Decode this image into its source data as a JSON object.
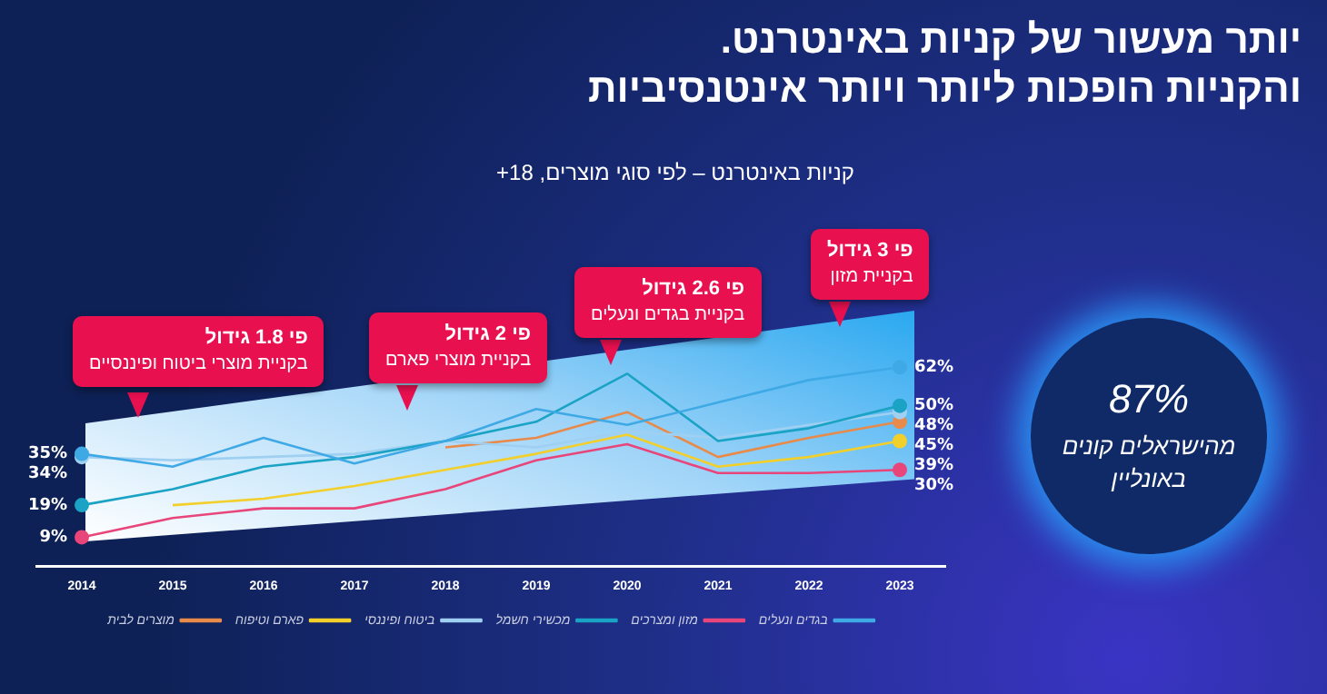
{
  "chart_data": {
    "type": "line",
    "title": "יותר מעשור של קניות באינטרנט.\nוהקניות הופכות ליותר ויותר אינטנסיביות",
    "subtitle": "קניות באינטרנט – לפי סוגי מוצרים, 18+",
    "categories": [
      "2014",
      "2015",
      "2016",
      "2017",
      "2018",
      "2019",
      "2020",
      "2021",
      "2022",
      "2023"
    ],
    "tick_labels": "x",
    "legend": "bottom",
    "line_style": "solid",
    "series": [
      {
        "name": "בגדים ונעלים",
        "color": "#3fa9e6",
        "values": [
          35,
          31,
          40,
          32,
          39,
          49,
          44,
          51,
          58,
          62
        ],
        "value_labels": [
          "35%",
          null,
          null,
          null,
          null,
          null,
          null,
          null,
          null,
          "62%"
        ]
      },
      {
        "name": "מזון ומצרכים",
        "color": "#e8457a",
        "values": [
          9,
          15,
          18,
          18,
          24,
          33,
          38,
          29,
          29,
          30
        ],
        "value_labels": [
          "9%",
          null,
          null,
          null,
          null,
          null,
          null,
          null,
          null,
          "30%"
        ]
      },
      {
        "name": "מכשירי חשמל",
        "color": "#1aa3c4",
        "values": [
          19,
          24,
          31,
          34,
          39,
          45,
          60,
          39,
          43,
          50
        ],
        "value_labels": [
          "19%",
          null,
          null,
          null,
          null,
          null,
          null,
          null,
          null,
          "50%"
        ]
      },
      {
        "name": "ביטוח ופיננסי",
        "color": "#9fd0f2",
        "values": [
          34,
          33,
          34,
          35,
          39,
          37,
          42,
          40,
          44,
          48
        ],
        "value_labels": [
          "34%",
          null,
          null,
          null,
          null,
          null,
          null,
          null,
          null,
          "48%"
        ]
      },
      {
        "name": "פארם וטיפוח",
        "color": "#f2cf2a",
        "values": [
          null,
          19,
          21,
          25,
          30,
          35,
          41,
          31,
          34,
          39
        ],
        "value_labels": [
          null,
          null,
          null,
          null,
          null,
          null,
          null,
          null,
          null,
          "39%"
        ]
      },
      {
        "name": "מוצרים לבית",
        "color": "#e88a4a",
        "values": [
          null,
          null,
          null,
          null,
          37,
          40,
          48,
          34,
          40,
          45
        ],
        "value_labels": [
          null,
          null,
          null,
          null,
          null,
          null,
          null,
          null,
          null,
          "45%"
        ]
      }
    ],
    "annotations": [
      "פי 1.8 גידול\nבקניית מוצרי ביטוח ופיננסיים",
      "פי 2 גידול\nבקניית מוצרי פארם",
      "פי 2.6 גידול\nבקניית בגדים ונעלים",
      "פי 3 גידול\nבקניית מזון",
      "87%\nמהישראלים קונים באונליין"
    ]
  }
}
